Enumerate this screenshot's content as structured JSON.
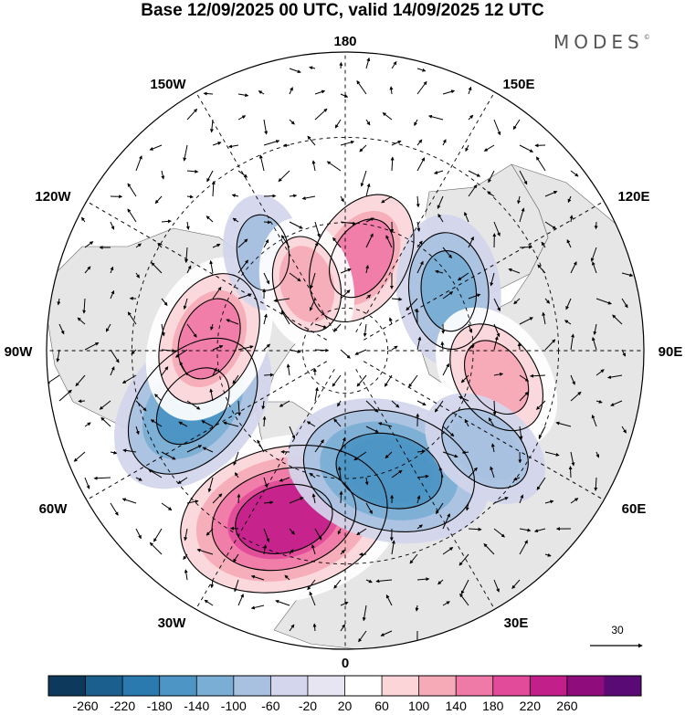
{
  "title": "Base 12/09/2025 00 UTC, valid 14/09/2025 12 UTC",
  "brand": "MODES",
  "brand_mark": "©",
  "projection": "north-polar-stereographic",
  "meridian_labels": {
    "top": "180",
    "bottom": "0",
    "left": "90W",
    "right": "90E",
    "upper_left_1": "150W",
    "upper_left_2": "120W",
    "upper_right_1": "150E",
    "upper_right_2": "120E",
    "lower_left_1": "60W",
    "lower_left_2": "30W",
    "lower_right_1": "60E",
    "lower_right_2": "30E"
  },
  "reference_vector": {
    "value": "30"
  },
  "colorbar": {
    "ticks": [
      "-260",
      "-220",
      "-180",
      "-140",
      "-100",
      "-60",
      "-20",
      "20",
      "60",
      "100",
      "140",
      "180",
      "220",
      "260"
    ],
    "colors": [
      "#0d3a5c",
      "#1a5f8e",
      "#2a7ab0",
      "#4c95c4",
      "#7aaed4",
      "#a8c1e0",
      "#d3d6ec",
      "#e8e5f2",
      "#ffffff",
      "#fbd5d8",
      "#f6aab8",
      "#f07aa7",
      "#e24a9a",
      "#c31f8b",
      "#8f0c7c",
      "#5a0a74"
    ],
    "colors_note_count": 16
  },
  "colors": {
    "land": "#e6e6e6",
    "ocean": "#ffffff",
    "grid": "#000000"
  },
  "anomaly_centers": [
    {
      "lon": -20,
      "lat": 48,
      "value": 220
    },
    {
      "lon": 20,
      "lat": 60,
      "value": -180
    },
    {
      "lon": -70,
      "lat": 52,
      "value": -160
    },
    {
      "lon": -95,
      "lat": 58,
      "value": 140
    },
    {
      "lon": 170,
      "lat": 68,
      "value": 140
    },
    {
      "lon": 120,
      "lat": 62,
      "value": -120
    },
    {
      "lon": 80,
      "lat": 54,
      "value": 120
    },
    {
      "lon": 55,
      "lat": 50,
      "value": -100
    },
    {
      "lon": -140,
      "lat": 60,
      "value": -80
    },
    {
      "lon": -150,
      "lat": 72,
      "value": 100
    }
  ]
}
